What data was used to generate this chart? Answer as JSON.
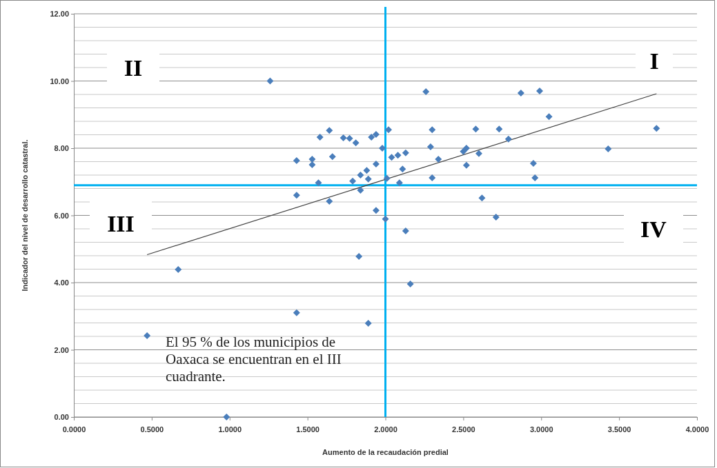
{
  "chart_data": {
    "type": "scatter",
    "xlabel": "Aumento de la recaudación  predial",
    "ylabel": "Indicador del nivel de desarrollo catastral.",
    "xlim": [
      0,
      4
    ],
    "ylim": [
      0,
      12
    ],
    "xticks": [
      {
        "value": 0,
        "label": "0.0000"
      },
      {
        "value": 0.5,
        "label": "0.5000"
      },
      {
        "value": 1,
        "label": "1.0000"
      },
      {
        "value": 1.5,
        "label": "1.5000"
      },
      {
        "value": 2,
        "label": "2.0000"
      },
      {
        "value": 2.5,
        "label": "2.5000"
      },
      {
        "value": 3,
        "label": "3.0000"
      },
      {
        "value": 3.5,
        "label": "3.5000"
      },
      {
        "value": 4,
        "label": "4.0000"
      }
    ],
    "yticks": [
      {
        "value": 0,
        "label": "0.00"
      },
      {
        "value": 0.4,
        "label": null
      },
      {
        "value": 0.8,
        "label": null
      },
      {
        "value": 1.2,
        "label": null
      },
      {
        "value": 1.6,
        "label": null
      },
      {
        "value": 2,
        "label": "2.00"
      },
      {
        "value": 2.4,
        "label": null
      },
      {
        "value": 2.8,
        "label": null
      },
      {
        "value": 3.2,
        "label": null
      },
      {
        "value": 3.6,
        "label": null
      },
      {
        "value": 4,
        "label": "4.00"
      },
      {
        "value": 4.4,
        "label": null
      },
      {
        "value": 4.8,
        "label": null
      },
      {
        "value": 5.2,
        "label": null
      },
      {
        "value": 5.6,
        "label": null
      },
      {
        "value": 6,
        "label": "6.00"
      },
      {
        "value": 6.4,
        "label": null
      },
      {
        "value": 6.8,
        "label": null
      },
      {
        "value": 7.2,
        "label": null
      },
      {
        "value": 7.6,
        "label": null
      },
      {
        "value": 8,
        "label": "8.00"
      },
      {
        "value": 8.4,
        "label": null
      },
      {
        "value": 8.8,
        "label": null
      },
      {
        "value": 9.2,
        "label": null
      },
      {
        "value": 9.6,
        "label": null
      },
      {
        "value": 10,
        "label": "10.00"
      },
      {
        "value": 10.4,
        "label": null
      },
      {
        "value": 10.8,
        "label": null
      },
      {
        "value": 11.2,
        "label": null
      },
      {
        "value": 11.6,
        "label": null
      },
      {
        "value": 12,
        "label": "12.00"
      }
    ],
    "grid": "y",
    "ref_lines": [
      {
        "axis": "x",
        "value": 2,
        "color": "#00b0f0"
      },
      {
        "axis": "y",
        "value": 6.9,
        "color": "#00b0f0"
      }
    ],
    "annotations": [
      "I",
      "II",
      "III",
      "IV",
      "El 95 % de los municipios de Oaxaca se encuentran en el III cuadrante."
    ],
    "series": [
      {
        "color": "#4a7ebb",
        "marker": "diamond",
        "x": [
          1.26,
          0.47,
          0.67,
          0.98,
          2.26,
          2.02,
          2.3,
          2.58,
          2.73,
          2.79,
          2.87,
          2.99,
          3.05,
          3.43,
          3.74,
          1.64,
          1.58,
          1.73,
          1.77,
          1.81,
          1.91,
          1.94,
          1.98,
          2.29,
          2.52,
          2.5,
          2.6,
          2.52,
          2.95,
          2.96,
          1.66,
          1.43,
          1.53,
          1.53,
          2.04,
          2.08,
          2.13,
          2.34,
          1.94,
          2.11,
          1.88,
          1.84,
          1.89,
          2.01,
          2.3,
          1.57,
          1.79,
          2.09,
          1.84,
          1.43,
          1.64,
          1.94,
          2.0,
          2.13,
          2.62,
          2.71,
          1.83,
          2.16,
          1.43,
          1.89
        ],
        "values": [
          10.0,
          2.42,
          4.39,
          0.0,
          9.68,
          8.55,
          8.55,
          8.57,
          8.57,
          8.27,
          9.64,
          9.7,
          8.94,
          7.98,
          8.59,
          8.53,
          8.33,
          8.31,
          8.29,
          8.16,
          8.33,
          8.41,
          8.0,
          8.04,
          8.0,
          7.9,
          7.84,
          7.49,
          7.55,
          7.12,
          7.75,
          7.63,
          7.67,
          7.51,
          7.73,
          7.79,
          7.86,
          7.67,
          7.53,
          7.38,
          7.34,
          7.2,
          7.08,
          7.1,
          7.12,
          6.97,
          7.02,
          6.97,
          6.75,
          6.6,
          6.42,
          6.15,
          5.89,
          5.54,
          6.52,
          5.95,
          4.78,
          3.96,
          3.1,
          2.79
        ]
      },
      {
        "type": "line",
        "color": "#404040",
        "marker": "none",
        "line_style": "solid",
        "x": [
          0.47,
          3.74
        ],
        "values": [
          4.83,
          9.62
        ]
      }
    ]
  }
}
